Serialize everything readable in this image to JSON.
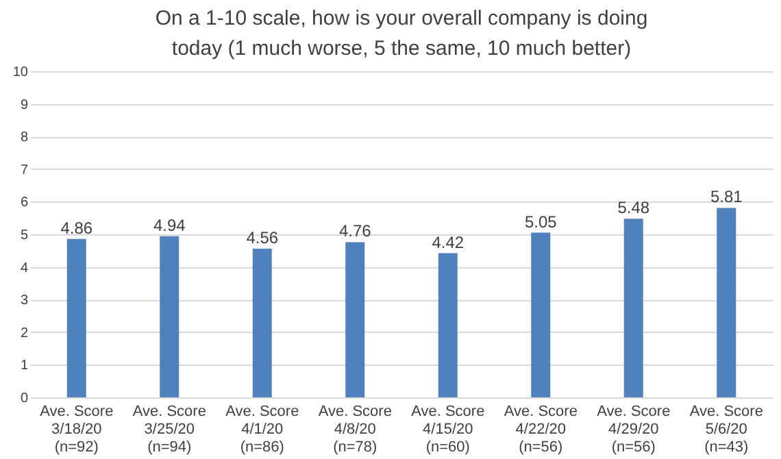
{
  "chart_data": {
    "type": "bar",
    "title": "On a 1-10 scale, how is your overall company is doing\ntoday (1 much worse, 5 the same, 10 much better)",
    "categories": [
      "Ave. Score\n3/18/20\n(n=92)",
      "Ave. Score\n3/25/20\n(n=94)",
      "Ave. Score\n4/1/20\n(n=86)",
      "Ave. Score\n4/8/20\n(n=78)",
      "Ave. Score\n4/15/20\n(n=60)",
      "Ave. Score\n4/22/20\n(n=56)",
      "Ave. Score\n4/29/20\n(n=56)",
      "Ave. Score\n5/6/20\n(n=43)"
    ],
    "values": [
      4.86,
      4.94,
      4.56,
      4.76,
      4.42,
      5.05,
      5.48,
      5.81
    ],
    "color": "#4f81bd",
    "ylim": [
      0,
      10
    ],
    "yticks": [
      0,
      1,
      2,
      3,
      4,
      5,
      6,
      7,
      8,
      9,
      10
    ],
    "grid": "y",
    "data_labels": true
  }
}
